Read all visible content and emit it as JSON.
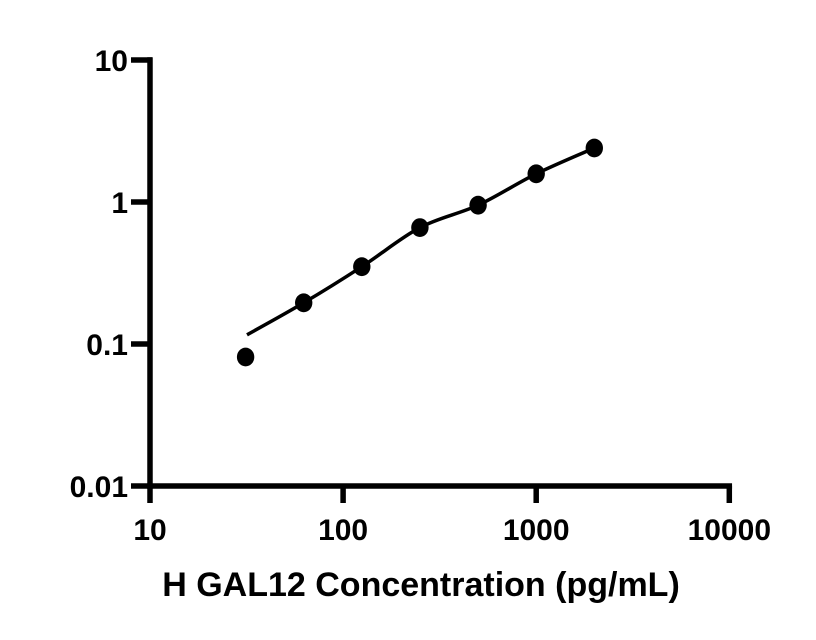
{
  "chart_data": {
    "type": "scatter",
    "title": "",
    "xlabel": "H GAL12 Concentration (pg/mL)",
    "ylabel": "",
    "x_scale": "log",
    "y_scale": "log",
    "xlim": [
      10,
      10000
    ],
    "ylim": [
      0.01,
      10
    ],
    "grid": false,
    "legend": null,
    "x_ticks": [
      {
        "value": 10,
        "label": "10"
      },
      {
        "value": 100,
        "label": "100"
      },
      {
        "value": 1000,
        "label": "1000"
      },
      {
        "value": 10000,
        "label": "10000"
      }
    ],
    "y_ticks": [
      {
        "value": 10,
        "label": "10"
      },
      {
        "value": 1,
        "label": "1"
      },
      {
        "value": 0.1,
        "label": "0.1"
      },
      {
        "value": 0.01,
        "label": "0.01"
      }
    ],
    "series": [
      {
        "name": "standard-points",
        "type": "scatter",
        "marker": "filled-circle",
        "color": "#000000",
        "x": [
          31.25,
          62.5,
          125,
          250,
          500,
          1000,
          2000
        ],
        "y": [
          0.081,
          0.195,
          0.35,
          0.66,
          0.95,
          1.58,
          2.4
        ]
      },
      {
        "name": "fit-curve",
        "type": "line",
        "color": "#000000",
        "x": [
          31.8,
          62.5,
          125,
          250,
          500,
          1000,
          2000
        ],
        "y": [
          0.116,
          0.195,
          0.35,
          0.66,
          0.95,
          1.58,
          2.4
        ]
      }
    ],
    "colors": {
      "foreground": "#000000",
      "background": "#ffffff"
    }
  }
}
